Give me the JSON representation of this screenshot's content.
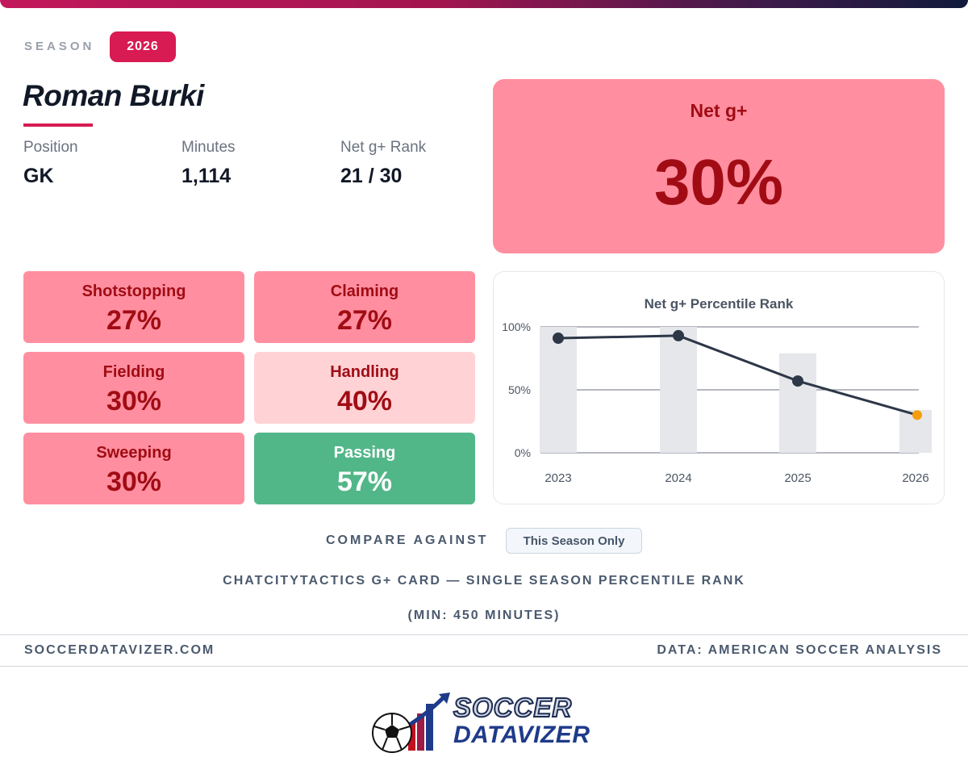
{
  "season": {
    "label": "SEASON",
    "value": "2026"
  },
  "player": {
    "name": "Roman Burki",
    "stats": [
      {
        "label": "Position",
        "value": "GK"
      },
      {
        "label": "Minutes",
        "value": "1,114"
      },
      {
        "label": "Net g+ Rank",
        "value": "21 / 30"
      }
    ]
  },
  "net_card": {
    "title": "Net g+",
    "value": "30%",
    "value_number": 30,
    "color": "#ff8fa0",
    "text_color": "#a10c14"
  },
  "metrics": [
    {
      "label": "Shotstopping",
      "value": "27%",
      "color": "#ff8fa0",
      "text_color": "#a10c14"
    },
    {
      "label": "Claiming",
      "value": "27%",
      "color": "#ff8fa0",
      "text_color": "#a10c14"
    },
    {
      "label": "Fielding",
      "value": "30%",
      "color": "#ff8fa0",
      "text_color": "#a10c14"
    },
    {
      "label": "Handling",
      "value": "40%",
      "color": "#ffd3d6",
      "text_color": "#a10c14"
    },
    {
      "label": "Sweeping",
      "value": "30%",
      "color": "#ff8fa0",
      "text_color": "#a10c14"
    },
    {
      "label": "Passing",
      "value": "57%",
      "color": "#52b788",
      "text_color": "#ffffff"
    }
  ],
  "chart_data": {
    "type": "line",
    "title": "Net g+ Percentile Rank",
    "categories": [
      "2023",
      "2024",
      "2025",
      "2026"
    ],
    "series": [
      {
        "values": [
          91,
          93,
          57,
          30
        ],
        "color": "#2d3748",
        "highlight_color": "#f59e0b"
      }
    ],
    "bars": [
      100,
      100,
      79,
      34
    ],
    "bar_color": "#e5e7eb",
    "ylim": [
      0,
      100
    ],
    "yticks": [
      "0%",
      "50%",
      "100%"
    ],
    "ytick_values": [
      0,
      50,
      100
    ],
    "grid": true
  },
  "compare": {
    "label": "COMPARE AGAINST",
    "option": "This Season Only"
  },
  "caption_line1": "CHATCITYTACTICS G+ CARD — SINGLE SEASON PERCENTILE RANK",
  "caption_line2": "(MIN: 450 MINUTES)",
  "footer": {
    "left": "SOCCERDATAVIZER.COM",
    "right": "DATA: AMERICAN SOCCER ANALYSIS"
  },
  "logo": {
    "line1": "SOCCER",
    "line2": "DATAVIZER"
  },
  "colors": {
    "accent": "#d81b52",
    "text_muted": "#4b5a6e"
  }
}
